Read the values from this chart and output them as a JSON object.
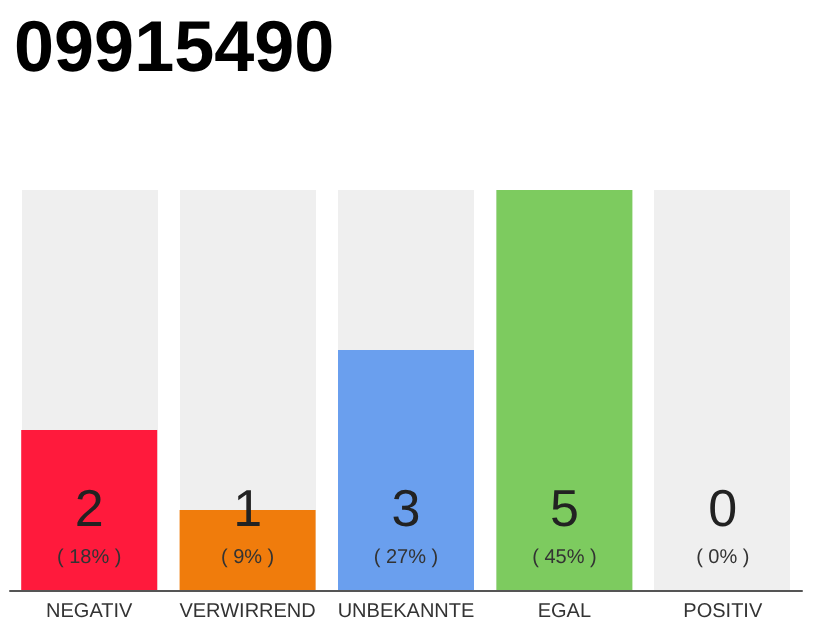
{
  "chart_data": {
    "type": "bar",
    "title": "09915490",
    "categories": [
      "NEGATIV",
      "VERWIRREND",
      "UNBEKANNTE",
      "EGAL",
      "POSITIV"
    ],
    "values": [
      2,
      1,
      3,
      5,
      0
    ],
    "colors": [
      "#ff1a3c",
      "#f07c0c",
      "#6a9fee",
      "#7dcb5f",
      "#d8d8d8"
    ],
    "tick_labels": "x",
    "value_labels": [
      "2\n( 18% )",
      "1\n( 9% )",
      "3\n( 27% )",
      "5\n( 45% )",
      "0\n( 0% )"
    ]
  }
}
